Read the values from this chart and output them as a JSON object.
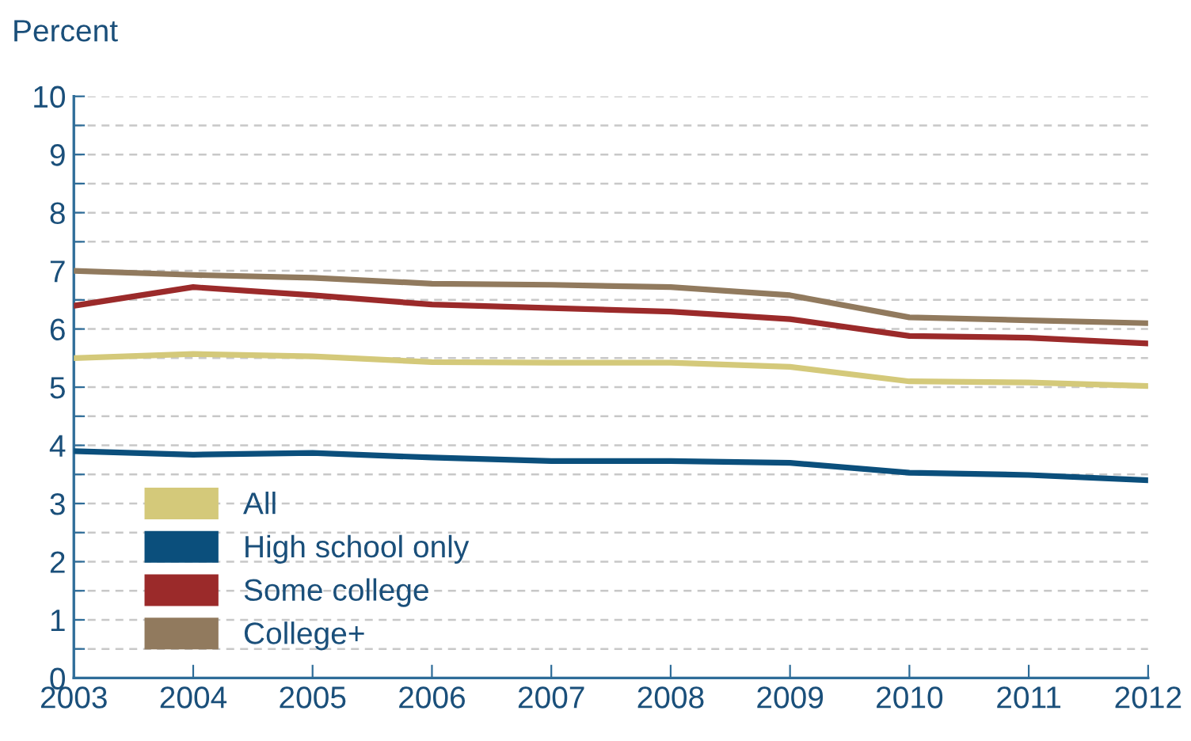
{
  "chart_data": {
    "type": "line",
    "ylabel": "Percent",
    "x": [
      2003,
      2004,
      2005,
      2006,
      2007,
      2008,
      2009,
      2010,
      2011,
      2012
    ],
    "series": [
      {
        "name": "All",
        "color": "#d4c97a",
        "values": [
          5.5,
          5.57,
          5.53,
          5.43,
          5.42,
          5.42,
          5.35,
          5.1,
          5.08,
          5.02
        ]
      },
      {
        "name": "High school only",
        "color": "#0b4f7c",
        "values": [
          3.9,
          3.84,
          3.87,
          3.79,
          3.73,
          3.73,
          3.7,
          3.53,
          3.49,
          3.4
        ]
      },
      {
        "name": "Some college",
        "color": "#9b2a2a",
        "values": [
          6.4,
          6.72,
          6.58,
          6.42,
          6.36,
          6.3,
          6.17,
          5.88,
          5.85,
          5.75
        ]
      },
      {
        "name": "College+",
        "color": "#917a5e",
        "values": [
          7.0,
          6.93,
          6.88,
          6.78,
          6.76,
          6.72,
          6.58,
          6.2,
          6.15,
          6.1
        ]
      }
    ],
    "xlim": [
      2003,
      2012
    ],
    "xticks": [
      2003,
      2004,
      2005,
      2006,
      2007,
      2008,
      2009,
      2010,
      2011,
      2012
    ],
    "ylim": [
      0,
      10
    ],
    "yticks": [
      0,
      {
        "value": 0.5,
        "label": null
      },
      1,
      {
        "value": 1.5,
        "label": null
      },
      2,
      {
        "value": 2.5,
        "label": null
      },
      3,
      {
        "value": 3.5,
        "label": null
      },
      4,
      {
        "value": 4.5,
        "label": null
      },
      5,
      {
        "value": 5.5,
        "label": null
      },
      6,
      {
        "value": 6.5,
        "label": null
      },
      7,
      {
        "value": 7.5,
        "label": null
      },
      8,
      {
        "value": 8.5,
        "label": null
      },
      9,
      {
        "value": 9.5,
        "label": null
      },
      10
    ],
    "grid": "y",
    "legend": "bottom left",
    "line_style": "solid",
    "marker": "none"
  }
}
